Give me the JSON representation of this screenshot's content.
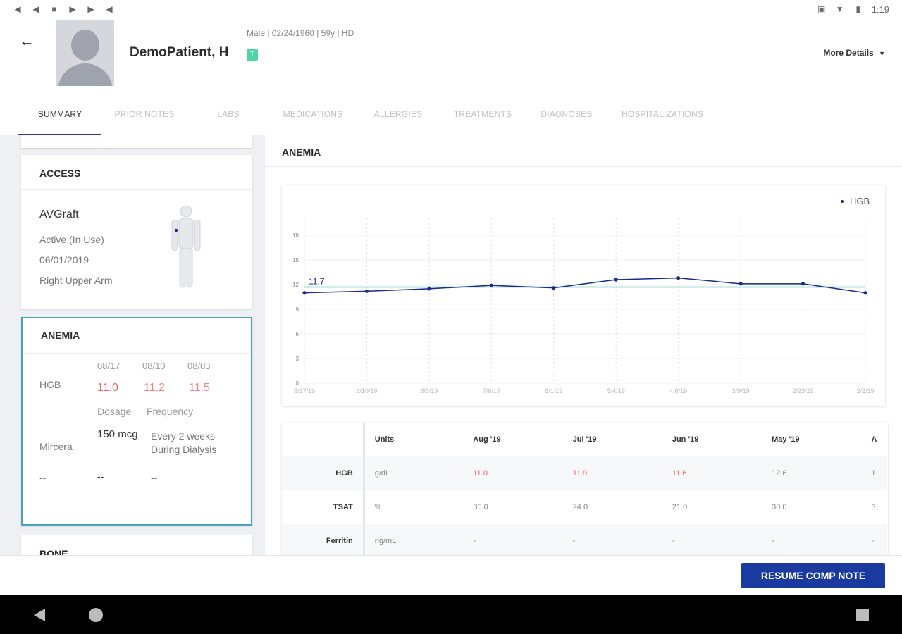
{
  "status_bar": {
    "time": "1:19"
  },
  "patient": {
    "name": "DemoPatient, H",
    "meta": "Male | 02/24/1960 | 59y  | HD",
    "badge": "T",
    "more_details": "More Details"
  },
  "tabs": [
    "SUMMARY",
    "PRIOR NOTES",
    "LABS",
    "MEDICATIONS",
    "ALLERGIES",
    "TREATMENTS",
    "DIAGNOSES",
    "HOSPITALIZATIONS"
  ],
  "access": {
    "title": "ACCESS",
    "type": "AVGraft",
    "status": "Active (In Use)",
    "date": "06/01/2019",
    "location": "Right Upper Arm"
  },
  "anemia_card": {
    "title": "ANEMIA",
    "dates": [
      "08/17",
      "08/10",
      "08/03"
    ],
    "hgb_label": "HGB",
    "hgb_values": [
      "11.0",
      "11.2",
      "11.5"
    ],
    "dosage_label": "Dosage",
    "frequency_label": "Frequency",
    "drug": "Mircera",
    "dosage": "150 mcg",
    "frequency": "Every 2 weeks During Dialysis",
    "empty_row": [
      "--",
      "--",
      "--"
    ]
  },
  "bone_card": {
    "title": "BONE"
  },
  "anemia_section": {
    "title": "ANEMIA",
    "legend": "HGB",
    "annotation": "11.7"
  },
  "chart_data": {
    "type": "line",
    "title": "",
    "series": [
      {
        "name": "HGB",
        "values": [
          11.0,
          11.2,
          11.5,
          11.9,
          11.6,
          12.6,
          12.8,
          12.1,
          12.1,
          11.0
        ]
      }
    ],
    "categories": [
      "8/17/19",
      "8/10/19",
      "8/3/19",
      "7/6/19",
      "6/1/19",
      "5/4/19",
      "4/6/19",
      "3/9/19",
      "2/23/19",
      "2/2/19"
    ],
    "reference_value": 11.7,
    "y_ticks": [
      0,
      3,
      6,
      9,
      12,
      15,
      18
    ],
    "ylim": [
      0,
      18
    ],
    "grid": true,
    "legend_position": "top-right"
  },
  "labs_table": {
    "headers": [
      "",
      "Units",
      "Aug '19",
      "Jul '19",
      "Jun '19",
      "May '19",
      "A"
    ],
    "rows": [
      {
        "label": "HGB",
        "units": "g/dL",
        "values": [
          "11.0",
          "11.9",
          "11.6",
          "12.6",
          "1"
        ]
      },
      {
        "label": "TSAT",
        "units": "%",
        "values": [
          "35.0",
          "24.0",
          "21.0",
          "30.0",
          "3"
        ]
      },
      {
        "label": "Ferritin",
        "units": "ng/mL",
        "values": [
          "-",
          "-",
          "-",
          "-",
          "-"
        ]
      }
    ]
  },
  "footer": {
    "resume_label": "RESUME COMP NOTE"
  },
  "colors": {
    "accent": "#1a3aa0",
    "low_value": "#f0605e",
    "line": "#1a2a8a",
    "reference": "#a8dcd8",
    "selected_card_border": "#4aa3b5"
  }
}
